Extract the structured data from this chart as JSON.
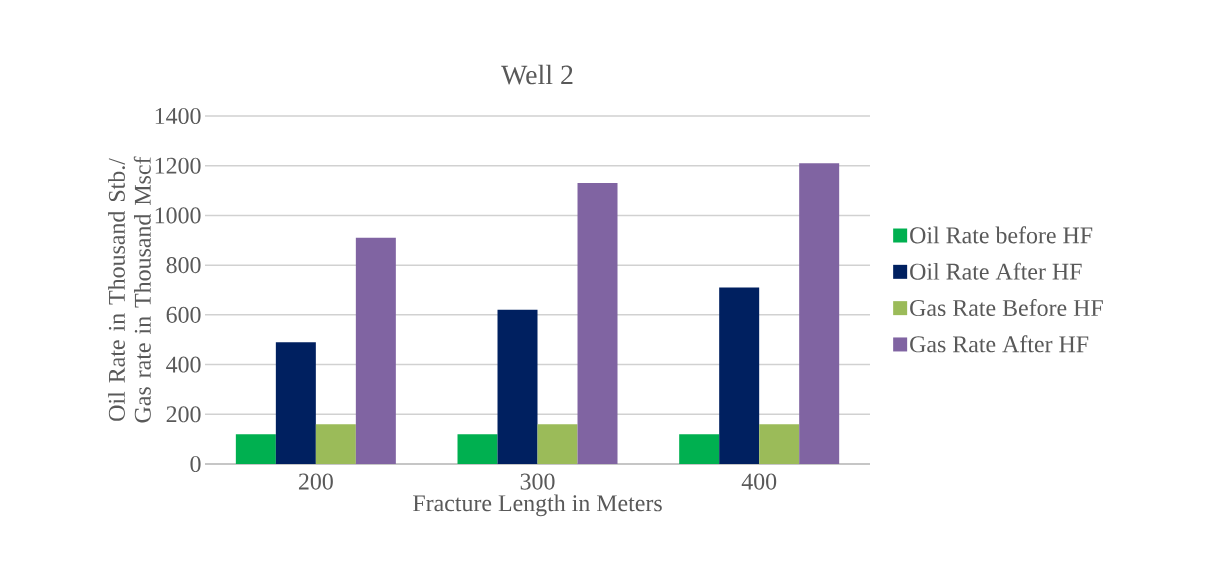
{
  "chart_data": {
    "type": "bar",
    "title": "Well 2",
    "xlabel": "Fracture Length in Meters",
    "ylabel": "Oil Rate in Thousand Stb./ Gas rate in Thousand Mscf",
    "categories": [
      "200",
      "300",
      "400"
    ],
    "series": [
      {
        "name": "Oil Rate before HF",
        "color": "#00b050",
        "values": [
          120,
          120,
          120
        ]
      },
      {
        "name": "Oil Rate After HF",
        "color": "#002060",
        "values": [
          490,
          620,
          710
        ]
      },
      {
        "name": "Gas Rate Before HF",
        "color": "#9bbb59",
        "values": [
          160,
          160,
          160
        ]
      },
      {
        "name": "Gas Rate After HF",
        "color": "#8064a2",
        "values": [
          910,
          1130,
          1210
        ]
      }
    ],
    "ylim": [
      0,
      1400
    ],
    "yticks": [
      0,
      200,
      400,
      600,
      800,
      1000,
      1200,
      1400
    ],
    "grid": "y",
    "legend": "right"
  }
}
